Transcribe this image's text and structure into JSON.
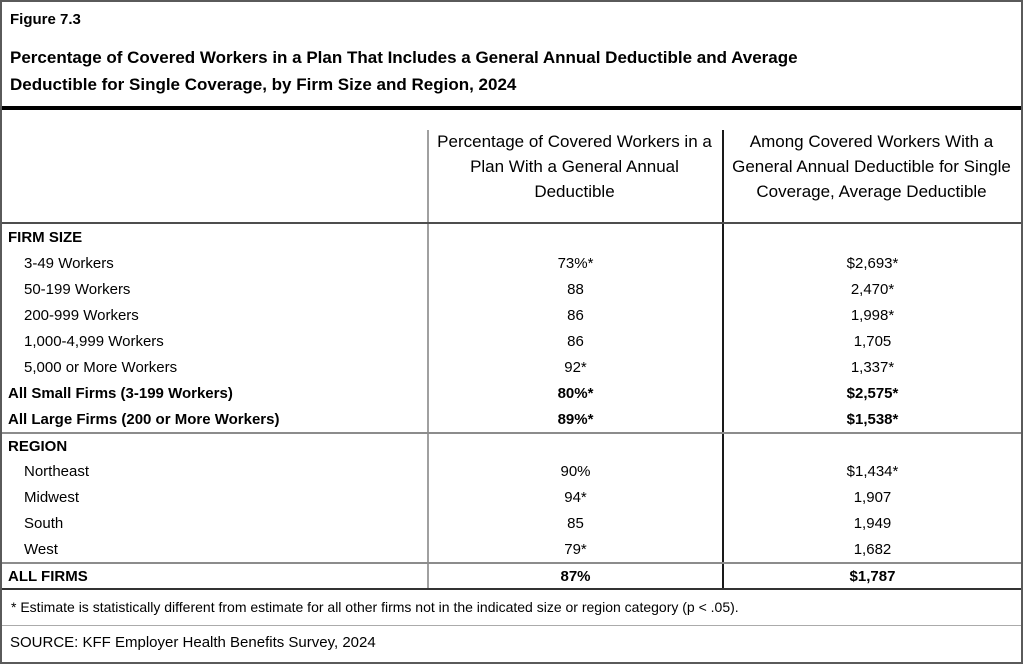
{
  "figure": {
    "label": "Figure 7.3",
    "title": "Percentage of Covered Workers in a Plan That Includes a General Annual Deductible and Average\nDeductible for Single Coverage, by Firm Size and Region, 2024"
  },
  "table": {
    "col_headers": [
      "",
      "Percentage of Covered Workers in a\nPlan With a General Annual\nDeductible",
      "Among Covered Workers With a\nGeneral Annual Deductible for Single\nCoverage, Average Deductible"
    ],
    "rows": [
      {
        "label": "FIRM SIZE",
        "col2": "",
        "col3": "",
        "bold": true,
        "indent": false,
        "section_start": false
      },
      {
        "label": "3-49 Workers",
        "col2": "73%*",
        "col3": "$2,693*",
        "bold": false,
        "indent": true,
        "section_start": false
      },
      {
        "label": "50-199 Workers",
        "col2": "88",
        "col3": "2,470*",
        "bold": false,
        "indent": true,
        "section_start": false
      },
      {
        "label": "200-999 Workers",
        "col2": "86",
        "col3": "1,998*",
        "bold": false,
        "indent": true,
        "section_start": false
      },
      {
        "label": "1,000-4,999 Workers",
        "col2": "86",
        "col3": "1,705",
        "bold": false,
        "indent": true,
        "section_start": false
      },
      {
        "label": "5,000 or More Workers",
        "col2": "92*",
        "col3": "1,337*",
        "bold": false,
        "indent": true,
        "section_start": false
      },
      {
        "label": "All Small Firms (3-199 Workers)",
        "col2": "80%*",
        "col3": "$2,575*",
        "bold": true,
        "indent": false,
        "section_start": false
      },
      {
        "label": "All Large Firms (200 or More Workers)",
        "col2": "89%*",
        "col3": "$1,538*",
        "bold": true,
        "indent": false,
        "section_start": false
      },
      {
        "label": "REGION",
        "col2": "",
        "col3": "",
        "bold": true,
        "indent": false,
        "section_start": true
      },
      {
        "label": "Northeast",
        "col2": "90%",
        "col3": "$1,434*",
        "bold": false,
        "indent": true,
        "section_start": false
      },
      {
        "label": "Midwest",
        "col2": "94*",
        "col3": "1,907",
        "bold": false,
        "indent": true,
        "section_start": false
      },
      {
        "label": "South",
        "col2": "85",
        "col3": "1,949",
        "bold": false,
        "indent": true,
        "section_start": false
      },
      {
        "label": "West",
        "col2": "79*",
        "col3": "1,682",
        "bold": false,
        "indent": true,
        "section_start": false
      },
      {
        "label": "ALL FIRMS",
        "col2": "87%",
        "col3": "$1,787",
        "bold": true,
        "indent": false,
        "section_start": true
      }
    ]
  },
  "notes": {
    "footnote": "* Estimate is statistically different from estimate for all other firms not in the indicated size or region category (p < .05).",
    "source": "SOURCE: KFF Employer Health Benefits Survey, 2024"
  }
}
